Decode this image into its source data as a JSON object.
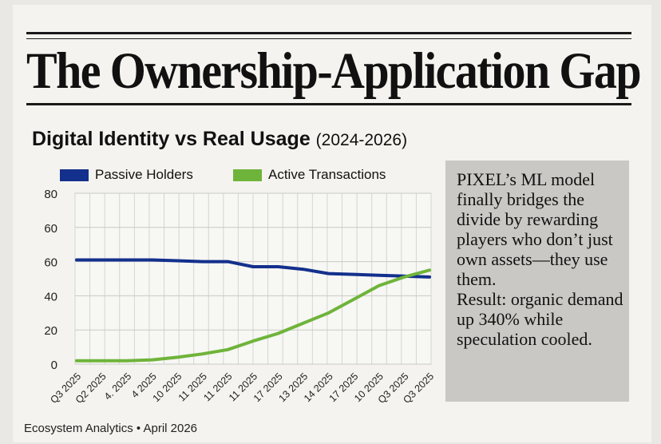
{
  "headline": "The Ownership-Application Gap",
  "chart_title": "Digital Identity vs Real Usage",
  "chart_subtitle": "(2024-2026)",
  "sidebar": {
    "paragraph1": "PIXEL’s ML model finally bridges the divide by rewarding players who don’t just own assets—they use them.",
    "paragraph2": "Result: organic demand up 340% while speculation cooled."
  },
  "footer": "Ecosystem Analytics • April 2026",
  "colors": {
    "passive": "#13308c",
    "active": "#6fb43a"
  },
  "chart_data": {
    "type": "line",
    "categories": [
      "Q3 2025",
      "Q2 2025",
      "4. 2025",
      "4 2025",
      "10 2025",
      "11 2025",
      "11 2025",
      "11 2025",
      "17 2025",
      "13 2025",
      "14 2025",
      "17 2025",
      "10 2025",
      "Q3 2025",
      "Q3 2025"
    ],
    "ytick_labels": [
      "0",
      "20",
      "40",
      "60",
      "60",
      "80"
    ],
    "series": [
      {
        "name": "Passive Holders",
        "values": [
          61,
          61,
          61,
          61,
          60.5,
          60,
          60,
          57,
          57,
          55.5,
          53,
          52.5,
          52,
          51.5,
          51
        ],
        "color": "#13308c"
      },
      {
        "name": "Active Transactions",
        "values": [
          2,
          2,
          2,
          2.5,
          4,
          6,
          8.5,
          13.5,
          18,
          24,
          30,
          38,
          46,
          51,
          55
        ],
        "color": "#6fb43a"
      }
    ],
    "ylim": [
      0,
      100
    ],
    "grid": true,
    "legend": "top"
  }
}
